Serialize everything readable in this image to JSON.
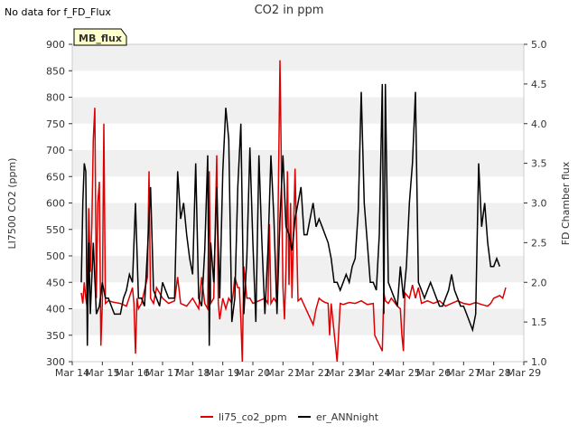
{
  "note": "No data for f_FD_Flux",
  "badge": "MB_flux",
  "chart_data": {
    "type": "line",
    "title": "CO2 in ppm",
    "ylabel": "LI7500 CO2 (ppm)",
    "y2label": "FD Chamber flux",
    "ylim": [
      300,
      900
    ],
    "y2lim": [
      1.0,
      5.0
    ],
    "xlim": [
      "Mar 14",
      "Mar 29"
    ],
    "x_ticks": [
      "Mar 14",
      "Mar 15",
      "Mar 16",
      "Mar 17",
      "Mar 18",
      "Mar 19",
      "Mar 20",
      "Mar 21",
      "Mar 22",
      "Mar 23",
      "Mar 24",
      "Mar 25",
      "Mar 26",
      "Mar 27",
      "Mar 28",
      "Mar 29"
    ],
    "y_ticks": [
      300,
      350,
      400,
      450,
      500,
      550,
      600,
      650,
      700,
      750,
      800,
      850,
      900
    ],
    "y2_ticks": [
      "1.0",
      "1.5",
      "2.0",
      "2.5",
      "3.0",
      "3.5",
      "4.0",
      "4.5",
      "5.0"
    ],
    "grid": "horizontal bands",
    "legend_position": "bottom",
    "series": [
      {
        "name": "li75_co2_ppm",
        "color": "#dd0000",
        "points": [
          [
            14.3,
            430
          ],
          [
            14.35,
            410
          ],
          [
            14.4,
            450
          ],
          [
            14.45,
            420
          ],
          [
            14.5,
            400
          ],
          [
            14.55,
            590
          ],
          [
            14.6,
            470
          ],
          [
            14.65,
            560
          ],
          [
            14.7,
            720
          ],
          [
            14.75,
            780
          ],
          [
            14.8,
            420
          ],
          [
            14.85,
            600
          ],
          [
            14.9,
            640
          ],
          [
            14.95,
            330
          ],
          [
            15.0,
            410
          ],
          [
            15.05,
            750
          ],
          [
            15.1,
            410
          ],
          [
            15.2,
            415
          ],
          [
            15.4,
            412
          ],
          [
            15.6,
            410
          ],
          [
            15.8,
            405
          ],
          [
            16.0,
            440
          ],
          [
            16.05,
            410
          ],
          [
            16.1,
            315
          ],
          [
            16.15,
            420
          ],
          [
            16.2,
            400
          ],
          [
            16.3,
            410
          ],
          [
            16.5,
            460
          ],
          [
            16.55,
            660
          ],
          [
            16.6,
            420
          ],
          [
            16.7,
            410
          ],
          [
            16.8,
            440
          ],
          [
            17.0,
            420
          ],
          [
            17.2,
            410
          ],
          [
            17.4,
            415
          ],
          [
            17.5,
            460
          ],
          [
            17.6,
            410
          ],
          [
            17.8,
            405
          ],
          [
            18.0,
            420
          ],
          [
            18.2,
            400
          ],
          [
            18.3,
            460
          ],
          [
            18.4,
            410
          ],
          [
            18.5,
            400
          ],
          [
            18.55,
            660
          ],
          [
            18.6,
            410
          ],
          [
            18.7,
            420
          ],
          [
            18.8,
            690
          ],
          [
            18.85,
            410
          ],
          [
            18.9,
            380
          ],
          [
            19.0,
            420
          ],
          [
            19.1,
            400
          ],
          [
            19.2,
            420
          ],
          [
            19.3,
            410
          ],
          [
            19.35,
            430
          ],
          [
            19.4,
            460
          ],
          [
            19.5,
            440
          ],
          [
            19.55,
            440
          ],
          [
            19.6,
            380
          ],
          [
            19.65,
            300
          ],
          [
            19.7,
            480
          ],
          [
            19.8,
            420
          ],
          [
            19.9,
            420
          ],
          [
            20.0,
            410
          ],
          [
            20.2,
            415
          ],
          [
            20.4,
            420
          ],
          [
            20.5,
            410
          ],
          [
            20.55,
            560
          ],
          [
            20.6,
            410
          ],
          [
            20.7,
            420
          ],
          [
            20.8,
            410
          ],
          [
            20.9,
            870
          ],
          [
            21.0,
            440
          ],
          [
            21.05,
            380
          ],
          [
            21.1,
            480
          ],
          [
            21.15,
            660
          ],
          [
            21.2,
            445
          ],
          [
            21.25,
            600
          ],
          [
            21.3,
            420
          ],
          [
            21.4,
            665
          ],
          [
            21.5,
            415
          ],
          [
            21.6,
            420
          ],
          [
            22.0,
            370
          ],
          [
            22.1,
            400
          ],
          [
            22.2,
            420
          ],
          [
            22.3,
            415
          ],
          [
            22.4,
            412
          ],
          [
            22.5,
            410
          ],
          [
            22.55,
            350
          ],
          [
            22.6,
            410
          ],
          [
            22.8,
            300
          ],
          [
            22.9,
            410
          ],
          [
            23.0,
            408
          ],
          [
            23.2,
            412
          ],
          [
            23.4,
            410
          ],
          [
            23.6,
            415
          ],
          [
            23.8,
            408
          ],
          [
            24.0,
            410
          ],
          [
            24.05,
            350
          ],
          [
            24.3,
            320
          ],
          [
            24.35,
            430
          ],
          [
            24.4,
            415
          ],
          [
            24.5,
            410
          ],
          [
            24.6,
            420
          ],
          [
            24.8,
            405
          ],
          [
            24.9,
            400
          ],
          [
            24.95,
            350
          ],
          [
            25.0,
            320
          ],
          [
            25.05,
            430
          ],
          [
            25.2,
            420
          ],
          [
            25.3,
            445
          ],
          [
            25.4,
            420
          ],
          [
            25.5,
            440
          ],
          [
            25.6,
            410
          ],
          [
            25.8,
            415
          ],
          [
            26.0,
            410
          ],
          [
            26.2,
            415
          ],
          [
            26.4,
            405
          ],
          [
            26.6,
            410
          ],
          [
            26.8,
            415
          ],
          [
            27.0,
            410
          ],
          [
            27.2,
            408
          ],
          [
            27.4,
            412
          ],
          [
            27.6,
            408
          ],
          [
            27.8,
            405
          ],
          [
            27.9,
            410
          ],
          [
            28.0,
            420
          ],
          [
            28.2,
            425
          ],
          [
            28.3,
            420
          ],
          [
            28.4,
            440
          ]
        ]
      },
      {
        "name": "er_ANNnight",
        "color": "#000000",
        "points": [
          [
            14.3,
            2.0
          ],
          [
            14.35,
            3.0
          ],
          [
            14.4,
            3.5
          ],
          [
            14.45,
            3.4
          ],
          [
            14.5,
            1.2
          ],
          [
            14.55,
            2.5
          ],
          [
            14.6,
            1.6
          ],
          [
            14.7,
            2.5
          ],
          [
            14.8,
            1.6
          ],
          [
            14.9,
            1.7
          ],
          [
            15.0,
            2.0
          ],
          [
            15.1,
            1.8
          ],
          [
            15.2,
            1.8
          ],
          [
            15.3,
            1.7
          ],
          [
            15.4,
            1.6
          ],
          [
            15.5,
            1.6
          ],
          [
            15.6,
            1.6
          ],
          [
            15.7,
            1.8
          ],
          [
            15.8,
            1.9
          ],
          [
            15.9,
            2.1
          ],
          [
            16.0,
            2.0
          ],
          [
            16.1,
            3.0
          ],
          [
            16.2,
            1.8
          ],
          [
            16.3,
            1.8
          ],
          [
            16.4,
            1.7
          ],
          [
            16.5,
            2.4
          ],
          [
            16.6,
            3.2
          ],
          [
            16.7,
            1.9
          ],
          [
            16.8,
            1.8
          ],
          [
            16.9,
            1.7
          ],
          [
            17.0,
            2.0
          ],
          [
            17.1,
            1.9
          ],
          [
            17.2,
            1.8
          ],
          [
            17.3,
            1.8
          ],
          [
            17.4,
            1.8
          ],
          [
            17.5,
            3.4
          ],
          [
            17.6,
            2.8
          ],
          [
            17.7,
            3.0
          ],
          [
            17.8,
            2.6
          ],
          [
            17.9,
            2.3
          ],
          [
            18.0,
            2.1
          ],
          [
            18.1,
            3.5
          ],
          [
            18.2,
            1.8
          ],
          [
            18.3,
            1.7
          ],
          [
            18.4,
            2.4
          ],
          [
            18.5,
            3.6
          ],
          [
            18.55,
            1.2
          ],
          [
            18.6,
            2.5
          ],
          [
            18.7,
            2.0
          ],
          [
            18.8,
            3.2
          ],
          [
            18.9,
            1.8
          ],
          [
            19.0,
            3.4
          ],
          [
            19.1,
            4.2
          ],
          [
            19.2,
            3.8
          ],
          [
            19.3,
            1.5
          ],
          [
            19.4,
            1.8
          ],
          [
            19.5,
            3.2
          ],
          [
            19.6,
            4.0
          ],
          [
            19.7,
            1.6
          ],
          [
            19.8,
            2.3
          ],
          [
            19.9,
            3.7
          ],
          [
            20.0,
            2.5
          ],
          [
            20.1,
            1.5
          ],
          [
            20.2,
            3.6
          ],
          [
            20.3,
            2.5
          ],
          [
            20.4,
            1.6
          ],
          [
            20.5,
            2.4
          ],
          [
            20.6,
            3.6
          ],
          [
            20.7,
            2.8
          ],
          [
            20.8,
            1.6
          ],
          [
            20.9,
            2.8
          ],
          [
            21.0,
            3.6
          ],
          [
            21.1,
            2.7
          ],
          [
            21.2,
            2.6
          ],
          [
            21.3,
            2.4
          ],
          [
            21.4,
            2.8
          ],
          [
            21.5,
            3.0
          ],
          [
            21.6,
            3.2
          ],
          [
            21.7,
            2.6
          ],
          [
            21.8,
            2.6
          ],
          [
            21.9,
            2.8
          ],
          [
            22.0,
            3.0
          ],
          [
            22.1,
            2.7
          ],
          [
            22.2,
            2.8
          ],
          [
            22.3,
            2.7
          ],
          [
            22.4,
            2.6
          ],
          [
            22.5,
            2.5
          ],
          [
            22.6,
            2.3
          ],
          [
            22.7,
            2.0
          ],
          [
            22.8,
            2.0
          ],
          [
            22.9,
            1.9
          ],
          [
            23.0,
            2.0
          ],
          [
            23.1,
            2.1
          ],
          [
            23.2,
            2.0
          ],
          [
            23.3,
            2.2
          ],
          [
            23.4,
            2.3
          ],
          [
            23.5,
            2.9
          ],
          [
            23.6,
            4.4
          ],
          [
            23.7,
            3.0
          ],
          [
            23.8,
            2.5
          ],
          [
            23.9,
            2.0
          ],
          [
            24.0,
            2.0
          ],
          [
            24.1,
            1.9
          ],
          [
            24.2,
            2.6
          ],
          [
            24.3,
            4.5
          ],
          [
            24.35,
            1.6
          ],
          [
            24.4,
            4.5
          ],
          [
            24.5,
            2.0
          ],
          [
            24.6,
            1.9
          ],
          [
            24.7,
            1.8
          ],
          [
            24.8,
            1.7
          ],
          [
            24.9,
            2.2
          ],
          [
            25.0,
            1.8
          ],
          [
            25.1,
            2.2
          ],
          [
            25.2,
            3.0
          ],
          [
            25.3,
            3.5
          ],
          [
            25.4,
            4.4
          ],
          [
            25.5,
            2.0
          ],
          [
            25.6,
            1.9
          ],
          [
            25.7,
            1.8
          ],
          [
            25.8,
            1.9
          ],
          [
            25.9,
            2.0
          ],
          [
            26.0,
            1.9
          ],
          [
            26.1,
            1.8
          ],
          [
            26.2,
            1.7
          ],
          [
            26.3,
            1.7
          ],
          [
            26.4,
            1.8
          ],
          [
            26.5,
            1.9
          ],
          [
            26.6,
            2.1
          ],
          [
            26.7,
            1.9
          ],
          [
            26.8,
            1.8
          ],
          [
            26.9,
            1.7
          ],
          [
            27.0,
            1.7
          ],
          [
            27.1,
            1.6
          ],
          [
            27.2,
            1.5
          ],
          [
            27.3,
            1.4
          ],
          [
            27.4,
            1.6
          ],
          [
            27.5,
            3.5
          ],
          [
            27.6,
            2.7
          ],
          [
            27.7,
            3.0
          ],
          [
            27.8,
            2.5
          ],
          [
            27.9,
            2.2
          ],
          [
            28.0,
            2.2
          ],
          [
            28.1,
            2.3
          ],
          [
            28.2,
            2.2
          ]
        ]
      }
    ]
  }
}
